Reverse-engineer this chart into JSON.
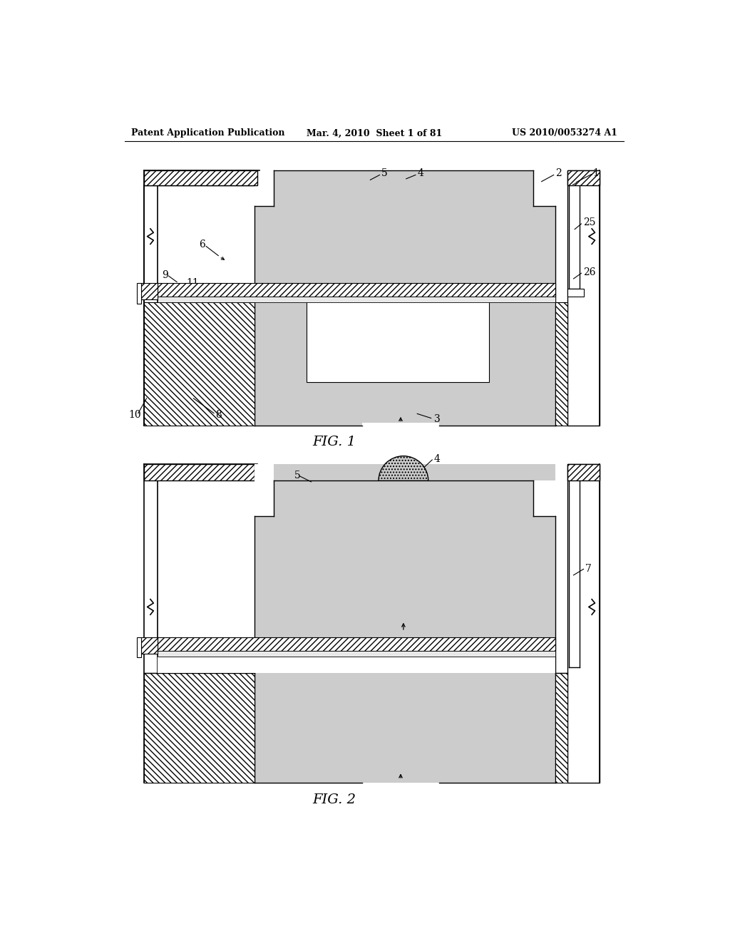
{
  "header_left": "Patent Application Publication",
  "header_mid": "Mar. 4, 2010  Sheet 1 of 81",
  "header_right": "US 2010/0053274 A1",
  "fig1_label": "FIG. 1",
  "fig2_label": "FIG. 2",
  "bg_color": "#ffffff"
}
